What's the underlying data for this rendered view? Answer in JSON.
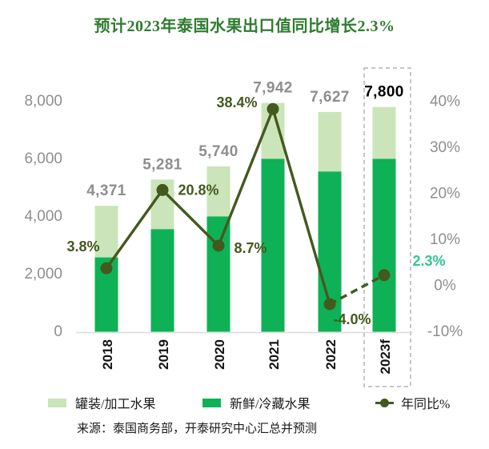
{
  "title": {
    "text": "预计2023年泰国水果出口值同比增长2.3%"
  },
  "colors": {
    "title_green": "#2e7d2f",
    "bar_light_green": "#cbe4ba",
    "bar_dark_green": "#0fb156",
    "line_olive": "#44591e",
    "highlight_teal": "#2dc98e",
    "label_gray": "#8e8e8e",
    "axis_line_gray": "#dcdcdc",
    "forecast_box_gray": "#b3b3b3",
    "x_label_black": "#141414",
    "total_highlight_black": "#000000"
  },
  "chart_data": {
    "type": "bar",
    "subtype": "stacked-bar-with-line",
    "categories": [
      "2018",
      "2019",
      "2020",
      "2021",
      "2022",
      "2023f"
    ],
    "bar_series": [
      {
        "name": "新鲜/冷藏水果",
        "role": "fresh",
        "values": [
          2580,
          3560,
          4000,
          6000,
          5560,
          6000
        ]
      },
      {
        "name": "罐装/加工水果",
        "role": "canned",
        "values": [
          1791,
          1721,
          1740,
          1942,
          2067,
          1800
        ]
      }
    ],
    "totals": {
      "values": [
        4371,
        5281,
        5740,
        7942,
        7627,
        7800
      ],
      "labels": [
        "4,371",
        "5,281",
        "5,740",
        "7,942",
        "7,627",
        "7,800"
      ],
      "highlight_index": 5
    },
    "line_series": {
      "name": "年同比%",
      "values_pct": [
        3.8,
        20.8,
        8.7,
        38.4,
        -4.0,
        2.3
      ],
      "labels": [
        "3.8%",
        "20.8%",
        "8.7%",
        "38.4%",
        "-4.0%",
        "2.3%"
      ],
      "highlight_index": 5,
      "dashed_segment_from_index": 4
    },
    "left_axis": {
      "tick_labels": [
        "8,000",
        "6,000",
        "4,000",
        "2,000",
        "0"
      ],
      "tick_values": [
        8000,
        6000,
        4000,
        2000,
        0
      ],
      "range": [
        0,
        8000
      ],
      "grid": false
    },
    "right_axis": {
      "tick_labels": [
        "40%",
        "30%",
        "20%",
        "10%",
        "0%",
        "-10%"
      ],
      "tick_values": [
        40,
        30,
        20,
        10,
        0,
        -10
      ],
      "range": [
        -10,
        40
      ],
      "grid": false
    },
    "forecast_box": {
      "category": "2023f",
      "style": "dashed"
    },
    "legend_position": "bottom"
  },
  "legend": {
    "items": [
      {
        "label": "罐装/加工水果",
        "swatch": "light-green-square"
      },
      {
        "label": "新鲜/冷藏水果",
        "swatch": "green-square"
      },
      {
        "label": "年同比%",
        "swatch": "line-dot"
      }
    ]
  },
  "source": {
    "text": "来源：泰国商务部，开泰研究中心汇总并预测"
  }
}
